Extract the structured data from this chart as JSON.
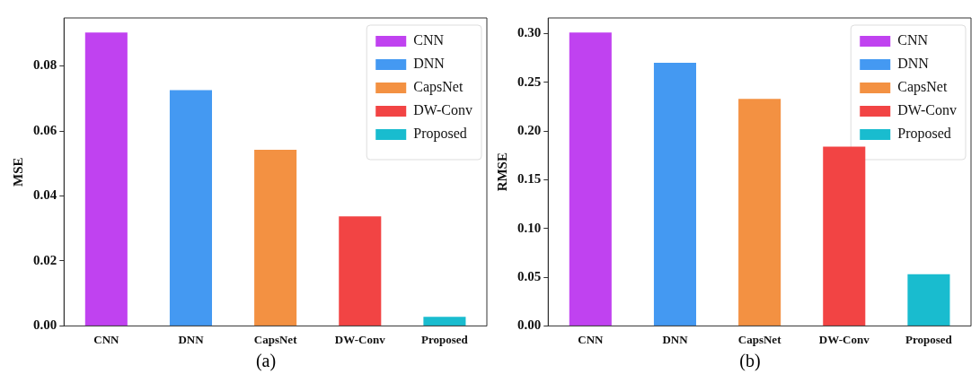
{
  "chart_data": [
    {
      "type": "bar",
      "ylabel": "MSE",
      "categories": [
        "CNN",
        "DNN",
        "CapsNet",
        "DW-Conv",
        "Proposed"
      ],
      "series": [
        {
          "name": "CNN",
          "color": "#c042f0",
          "values": [
            0.0903,
            null,
            null,
            null,
            null
          ]
        },
        {
          "name": "DNN",
          "color": "#4499f2",
          "values": [
            null,
            0.0726,
            null,
            null,
            null
          ]
        },
        {
          "name": "CapsNet",
          "color": "#f39142",
          "values": [
            null,
            null,
            0.0542,
            null,
            null
          ]
        },
        {
          "name": "DW-Conv",
          "color": "#f24444",
          "values": [
            null,
            null,
            null,
            0.0337,
            null
          ]
        },
        {
          "name": "Proposed",
          "color": "#19bccf",
          "values": [
            null,
            null,
            null,
            null,
            0.0028
          ]
        }
      ],
      "ylim": [
        0,
        0.0948
      ],
      "yticks": [
        {
          "value": 0,
          "label": "0.00"
        },
        {
          "value": 0.02,
          "label": "0.02"
        },
        {
          "value": 0.04,
          "label": "0.04"
        },
        {
          "value": 0.06,
          "label": "0.06"
        },
        {
          "value": 0.08,
          "label": "0.08"
        }
      ],
      "legend": "top right",
      "annotations": [
        "(a)"
      ]
    },
    {
      "type": "bar",
      "ylabel": "RMSE",
      "categories": [
        "CNN",
        "DNN",
        "CapsNet",
        "DW-Conv",
        "Proposed"
      ],
      "series": [
        {
          "name": "CNN",
          "color": "#c042f0",
          "values": [
            0.301,
            null,
            null,
            null,
            null
          ]
        },
        {
          "name": "DNN",
          "color": "#4499f2",
          "values": [
            null,
            0.27,
            null,
            null,
            null
          ]
        },
        {
          "name": "CapsNet",
          "color": "#f39142",
          "values": [
            null,
            null,
            0.233,
            null,
            null
          ]
        },
        {
          "name": "DW-Conv",
          "color": "#f24444",
          "values": [
            null,
            null,
            null,
            0.184,
            null
          ]
        },
        {
          "name": "Proposed",
          "color": "#19bccf",
          "values": [
            null,
            null,
            null,
            null,
            0.053
          ]
        }
      ],
      "ylim": [
        0,
        0.316
      ],
      "yticks": [
        {
          "value": 0,
          "label": "0.00"
        },
        {
          "value": 0.05,
          "label": "0.05"
        },
        {
          "value": 0.1,
          "label": "0.10"
        },
        {
          "value": 0.15,
          "label": "0.15"
        },
        {
          "value": 0.2,
          "label": "0.20"
        },
        {
          "value": 0.25,
          "label": "0.25"
        },
        {
          "value": 0.3,
          "label": "0.30"
        }
      ],
      "legend": "top right",
      "annotations": [
        "(b)"
      ]
    }
  ]
}
